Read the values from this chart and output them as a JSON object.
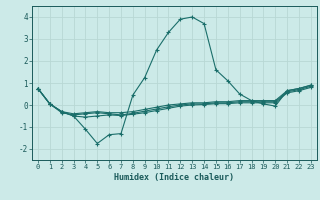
{
  "xlabel": "Humidex (Indice chaleur)",
  "bg_color": "#cceae8",
  "grid_color": "#b8d8d4",
  "line_color": "#1a6e6a",
  "xlim": [
    -0.5,
    23.5
  ],
  "ylim": [
    -2.5,
    4.5
  ],
  "xticks": [
    0,
    1,
    2,
    3,
    4,
    5,
    6,
    7,
    8,
    9,
    10,
    11,
    12,
    13,
    14,
    15,
    16,
    17,
    18,
    19,
    20,
    21,
    22,
    23
  ],
  "yticks": [
    -2,
    -1,
    0,
    1,
    2,
    3,
    4
  ],
  "series": [
    [
      0.75,
      0.05,
      -0.3,
      -0.5,
      -1.1,
      -1.75,
      -1.35,
      -1.3,
      0.45,
      1.25,
      2.5,
      3.3,
      3.9,
      4.0,
      3.7,
      1.6,
      1.1,
      0.5,
      0.2,
      0.05,
      -0.05,
      0.65,
      0.75,
      0.9
    ],
    [
      0.75,
      0.05,
      -0.3,
      -0.4,
      -0.35,
      -0.3,
      -0.35,
      -0.35,
      -0.3,
      -0.2,
      -0.1,
      0.0,
      0.05,
      0.1,
      0.1,
      0.15,
      0.15,
      0.2,
      0.2,
      0.2,
      0.2,
      0.65,
      0.75,
      0.9
    ],
    [
      0.75,
      0.05,
      -0.35,
      -0.45,
      -0.4,
      -0.35,
      -0.4,
      -0.45,
      -0.38,
      -0.28,
      -0.18,
      -0.08,
      0.0,
      0.05,
      0.05,
      0.1,
      0.1,
      0.15,
      0.15,
      0.15,
      0.15,
      0.6,
      0.7,
      0.85
    ],
    [
      0.75,
      0.05,
      -0.3,
      -0.5,
      -0.55,
      -0.5,
      -0.45,
      -0.48,
      -0.42,
      -0.35,
      -0.25,
      -0.15,
      -0.05,
      0.0,
      0.02,
      0.06,
      0.06,
      0.1,
      0.1,
      0.1,
      0.1,
      0.55,
      0.65,
      0.8
    ]
  ]
}
